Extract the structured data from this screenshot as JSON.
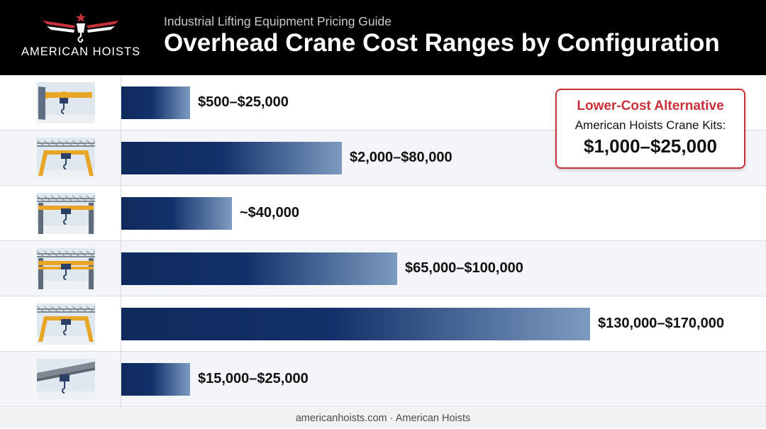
{
  "header": {
    "logo_text": "AMERICAN HOISTS",
    "subtitle": "Industrial Lifting Equipment Pricing Guide",
    "title": "Overhead Crane Cost Ranges by Configuration"
  },
  "colors": {
    "header_bg": "#000000",
    "bar_dark": "#0f2a5c",
    "bar_light": "#7d9bc0",
    "accent_red": "#c8303a"
  },
  "chart_data": {
    "type": "bar",
    "orientation": "horizontal",
    "grid": false,
    "icons": [
      "jib-crane-icon",
      "gantry-crane-icon",
      "single-girder-overhead-crane-icon",
      "double-girder-overhead-crane-icon",
      "large-gantry-crane-icon",
      "monorail-hoist-icon"
    ],
    "labels": [
      "$500–$25,000",
      "$2,000–$80,000",
      "~$40,000",
      "$65,000–$100,000",
      "$130,000–$170,000",
      "$15,000–$25,000"
    ],
    "values": [
      25000,
      80000,
      40000,
      100000,
      170000,
      25000
    ],
    "xlim": [
      0,
      170000
    ]
  },
  "callout": {
    "title": "Lower-Cost Alternative",
    "line": "American Hoists Crane Kits:",
    "value": "$1,000–$25,000"
  },
  "footer": "americanhoists.com · American Hoists"
}
